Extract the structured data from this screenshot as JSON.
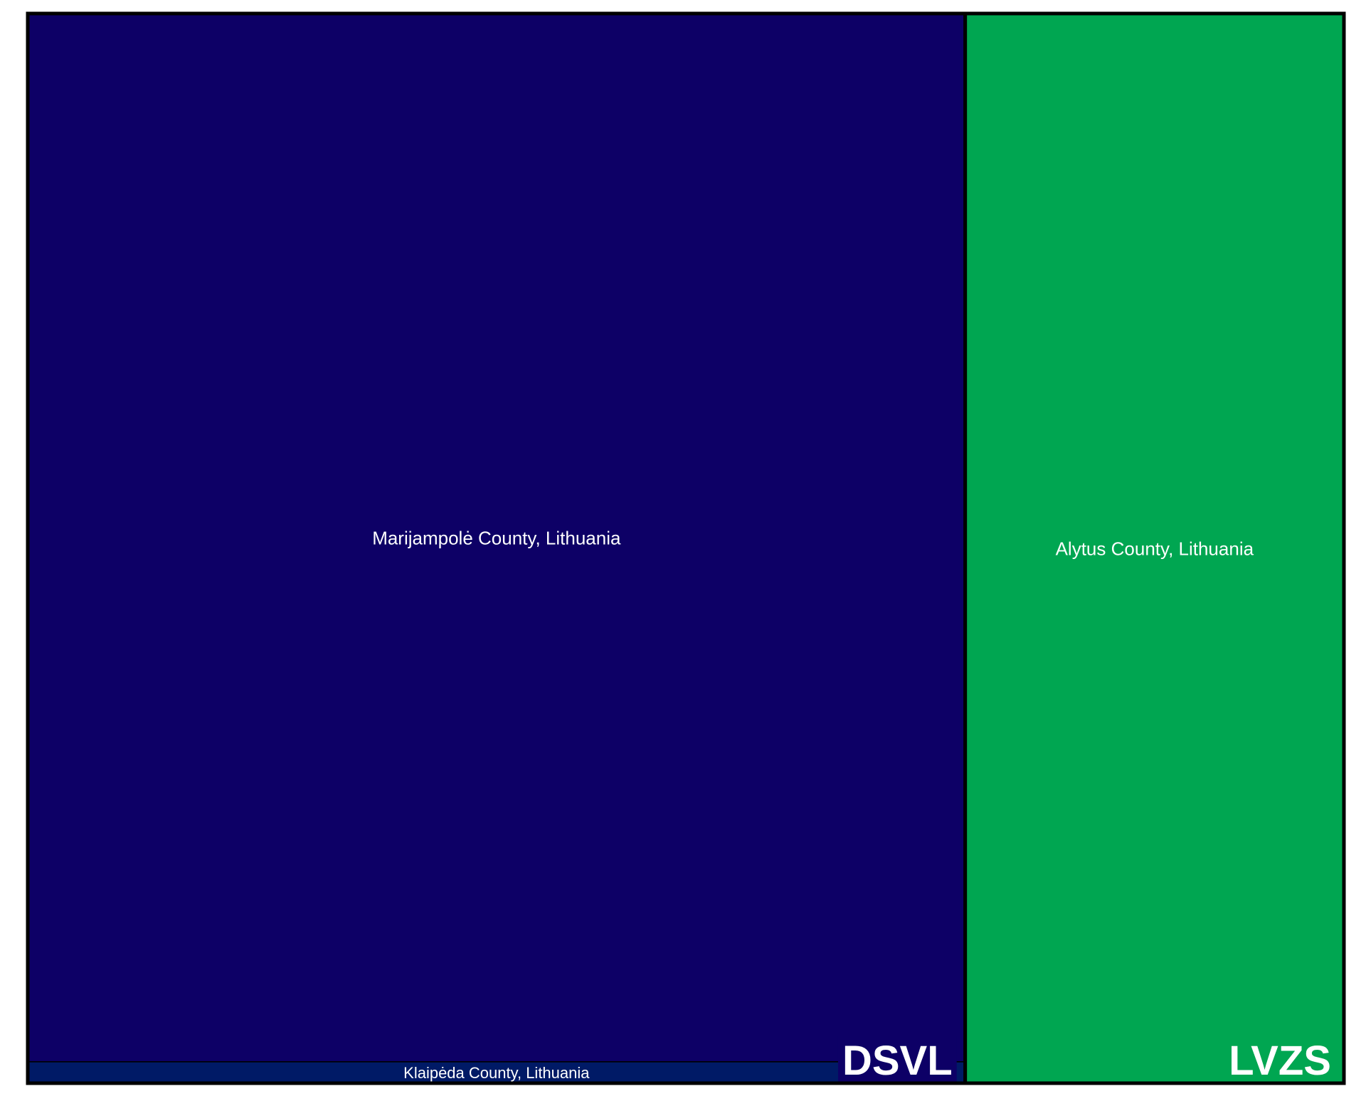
{
  "chart_data": {
    "type": "treemap",
    "title": "",
    "groups": [
      {
        "name": "DSVL",
        "color": "#0d0066",
        "children": [
          {
            "label": "Marijampolė County, Lithuania",
            "value": 98.0,
            "color": "#0d0066"
          },
          {
            "label": "Klaipėda County, Lithuania",
            "value": 2.0,
            "color": "#001a66"
          }
        ]
      },
      {
        "name": "LVZS",
        "color": "#00a651",
        "children": [
          {
            "label": "Alytus County, Lithuania",
            "value": 40.4,
            "color": "#00a651"
          }
        ]
      }
    ]
  }
}
